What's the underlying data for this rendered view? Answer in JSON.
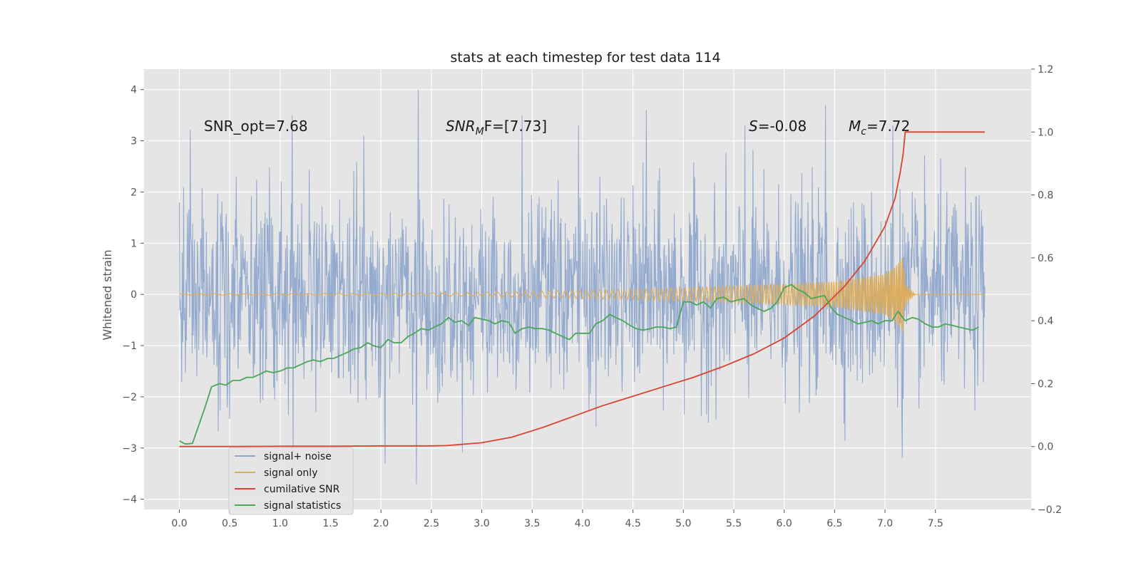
{
  "chart_data": {
    "type": "line",
    "title": "stats at each timestep for test data 114",
    "ylabel": "Whitened strain",
    "xlim": [
      -0.35,
      8.45
    ],
    "ylim": [
      -4.2,
      4.4
    ],
    "y2lim": [
      -0.2,
      1.2
    ],
    "x_ticks": [
      0.0,
      0.5,
      1.0,
      1.5,
      2.0,
      2.5,
      3.0,
      3.5,
      4.0,
      4.5,
      5.0,
      5.5,
      6.0,
      6.5,
      7.0,
      7.5
    ],
    "x_tick_labels": [
      "0.0",
      "0.5",
      "1.0",
      "1.5",
      "2.0",
      "2.5",
      "3.0",
      "3.5",
      "4.0",
      "4.5",
      "5.0",
      "5.5",
      "6.0",
      "6.5",
      "7.0",
      "7.5"
    ],
    "y_ticks": [
      4,
      3,
      2,
      1,
      0,
      -1,
      -2,
      -3,
      -4
    ],
    "y_tick_labels": [
      "4",
      "3",
      "2",
      "1",
      "0",
      "−1",
      "−2",
      "−3",
      "−4"
    ],
    "y2_ticks": [
      1.2,
      1.0,
      0.8,
      0.6,
      0.4,
      0.2,
      0.0,
      -0.2
    ],
    "y2_tick_labels": [
      "1.2",
      "1.0",
      "0.8",
      "0.6",
      "0.4",
      "0.2",
      "0.0",
      "−0.2"
    ],
    "grid": true,
    "legend_position": "lower-left",
    "colors": {
      "noise": "#8fa6cc",
      "signal": "#e0ad55",
      "snr": "#d94330",
      "stats": "#4aa65a",
      "background": "#e5e5e5"
    },
    "annotations": {
      "snr_opt": "SNR_opt=7.68",
      "snr_mf_a": "SNR",
      "snr_mf_sub": "M",
      "snr_mf_b": "F=[7.73]",
      "s_a": "S",
      "s_b": "=-0.08",
      "mc_a": "M",
      "mc_sub": "c",
      "mc_b": "=7.72"
    },
    "series": [
      {
        "name": "signal+ noise",
        "axis": "left",
        "x_range": [
          0.0,
          7.99
        ],
        "description": "whitened noisy strain, approx. unit-variance Gaussian noise with peaks near 4.0 and troughs near -3.7",
        "peaks": [
          [
            0.0,
            1.8
          ],
          [
            1.12,
            3.5
          ],
          [
            1.83,
            3.1
          ],
          [
            2.37,
            4.0
          ],
          [
            2.35,
            -3.7
          ],
          [
            2.04,
            -3.3
          ],
          [
            3.4,
            3.5
          ],
          [
            3.96,
            3.3
          ],
          [
            4.63,
            3.6
          ],
          [
            5.61,
            3.3
          ],
          [
            6.41,
            3.7
          ],
          [
            7.17,
            -3.2
          ],
          [
            7.08,
            3.3
          ]
        ]
      },
      {
        "name": "signal only",
        "axis": "left",
        "x_range": [
          0.0,
          7.99
        ],
        "envelope": [
          [
            0.0,
            0.01
          ],
          [
            2.0,
            0.02
          ],
          [
            3.0,
            0.04
          ],
          [
            4.0,
            0.08
          ],
          [
            5.0,
            0.13
          ],
          [
            6.0,
            0.2
          ],
          [
            6.5,
            0.25
          ],
          [
            7.0,
            0.4
          ],
          [
            7.1,
            0.55
          ],
          [
            7.18,
            0.75
          ],
          [
            7.2,
            0.2
          ],
          [
            7.3,
            0.0
          ],
          [
            7.99,
            0.0
          ]
        ]
      },
      {
        "name": "cumilative SNR",
        "axis": "right",
        "x": [
          0.0,
          0.5,
          1.0,
          1.5,
          2.0,
          2.5,
          2.65,
          3.0,
          3.3,
          3.6,
          3.9,
          4.2,
          4.5,
          4.8,
          5.1,
          5.4,
          5.7,
          6.0,
          6.3,
          6.6,
          6.8,
          7.0,
          7.1,
          7.15,
          7.18,
          7.2,
          7.99
        ],
        "y": [
          0.0,
          0.0,
          0.001,
          0.001,
          0.002,
          0.002,
          0.003,
          0.012,
          0.03,
          0.06,
          0.095,
          0.13,
          0.16,
          0.19,
          0.22,
          0.255,
          0.295,
          0.345,
          0.415,
          0.51,
          0.59,
          0.7,
          0.79,
          0.87,
          0.93,
          1.0,
          1.0
        ]
      },
      {
        "name": "signal statistics",
        "axis": "right",
        "x": [
          0.0,
          0.06,
          0.13,
          0.25,
          0.32,
          0.4,
          0.46,
          0.53,
          0.6,
          0.67,
          0.73,
          0.8,
          0.86,
          0.93,
          1.0,
          1.07,
          1.13,
          1.2,
          1.27,
          1.33,
          1.4,
          1.47,
          1.53,
          1.6,
          1.67,
          1.73,
          1.8,
          1.87,
          1.93,
          2.0,
          2.07,
          2.13,
          2.2,
          2.27,
          2.33,
          2.4,
          2.47,
          2.53,
          2.6,
          2.67,
          2.73,
          2.8,
          2.87,
          2.93,
          3.0,
          3.07,
          3.13,
          3.2,
          3.27,
          3.33,
          3.4,
          3.47,
          3.53,
          3.6,
          3.67,
          3.73,
          3.8,
          3.87,
          3.93,
          4.0,
          4.07,
          4.13,
          4.2,
          4.27,
          4.33,
          4.4,
          4.47,
          4.53,
          4.6,
          4.67,
          4.73,
          4.8,
          4.87,
          4.93,
          5.0,
          5.07,
          5.13,
          5.2,
          5.27,
          5.33,
          5.4,
          5.47,
          5.53,
          5.6,
          5.67,
          5.73,
          5.8,
          5.87,
          5.93,
          6.0,
          6.07,
          6.13,
          6.2,
          6.27,
          6.33,
          6.4,
          6.47,
          6.53,
          6.6,
          6.67,
          6.73,
          6.8,
          6.87,
          6.93,
          7.0,
          7.07,
          7.13,
          7.2,
          7.27,
          7.33,
          7.4,
          7.47,
          7.53,
          7.6,
          7.67,
          7.73,
          7.8,
          7.87,
          7.93
        ],
        "y": [
          0.018,
          0.008,
          0.01,
          0.12,
          0.19,
          0.2,
          0.195,
          0.21,
          0.21,
          0.22,
          0.22,
          0.23,
          0.24,
          0.235,
          0.24,
          0.25,
          0.25,
          0.26,
          0.27,
          0.275,
          0.27,
          0.28,
          0.28,
          0.29,
          0.3,
          0.31,
          0.315,
          0.33,
          0.32,
          0.315,
          0.34,
          0.33,
          0.33,
          0.35,
          0.36,
          0.375,
          0.37,
          0.38,
          0.39,
          0.41,
          0.395,
          0.4,
          0.385,
          0.41,
          0.405,
          0.4,
          0.39,
          0.4,
          0.395,
          0.36,
          0.375,
          0.38,
          0.375,
          0.375,
          0.37,
          0.36,
          0.35,
          0.34,
          0.36,
          0.36,
          0.36,
          0.39,
          0.4,
          0.42,
          0.41,
          0.4,
          0.385,
          0.375,
          0.37,
          0.375,
          0.38,
          0.38,
          0.375,
          0.38,
          0.46,
          0.46,
          0.45,
          0.46,
          0.44,
          0.47,
          0.475,
          0.46,
          0.465,
          0.47,
          0.45,
          0.44,
          0.43,
          0.44,
          0.46,
          0.505,
          0.515,
          0.5,
          0.49,
          0.47,
          0.475,
          0.48,
          0.44,
          0.42,
          0.41,
          0.4,
          0.39,
          0.395,
          0.4,
          0.39,
          0.4,
          0.4,
          0.43,
          0.4,
          0.41,
          0.405,
          0.39,
          0.38,
          0.38,
          0.39,
          0.385,
          0.38,
          0.375,
          0.37,
          0.38
        ]
      }
    ]
  }
}
